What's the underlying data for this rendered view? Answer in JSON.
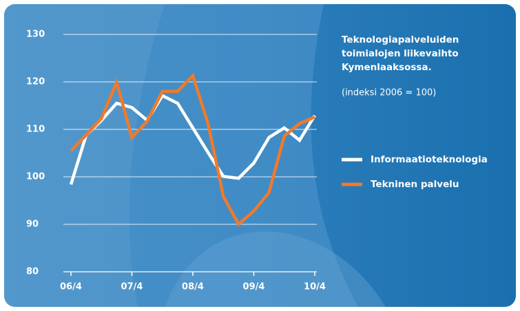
{
  "chart_data": {
    "type": "line",
    "title_lines": [
      "Teknologiapalveluiden",
      "toimialojen liikevaihto",
      "Kymenlaaksossa."
    ],
    "subtitle": "(indeksi 2006 = 100)",
    "categories": [
      "06/4",
      null,
      null,
      null,
      "07/4",
      null,
      null,
      null,
      "08/4",
      null,
      null,
      null,
      "09/4",
      null,
      null,
      null,
      "10/4"
    ],
    "series": [
      {
        "name": "Informaatioteknologia",
        "color": "#ffffff",
        "values": [
          98.4,
          108.8,
          111.9,
          115.5,
          114.6,
          111.9,
          117.1,
          115.5,
          110.3,
          105.1,
          100.1,
          99.7,
          102.9,
          108.3,
          110.3,
          107.7,
          112.9
        ]
      },
      {
        "name": "Tekninen palvelu",
        "color": "#f07a2a",
        "values": [
          105.5,
          108.8,
          112.3,
          119.9,
          108.3,
          111.7,
          118.0,
          118.0,
          121.3,
          111.2,
          95.9,
          90.0,
          92.8,
          96.7,
          108.6,
          111.2,
          112.6
        ]
      }
    ],
    "ylim": [
      80,
      130
    ],
    "yticks": [
      80,
      90,
      100,
      110,
      120,
      130
    ],
    "grid": true
  }
}
